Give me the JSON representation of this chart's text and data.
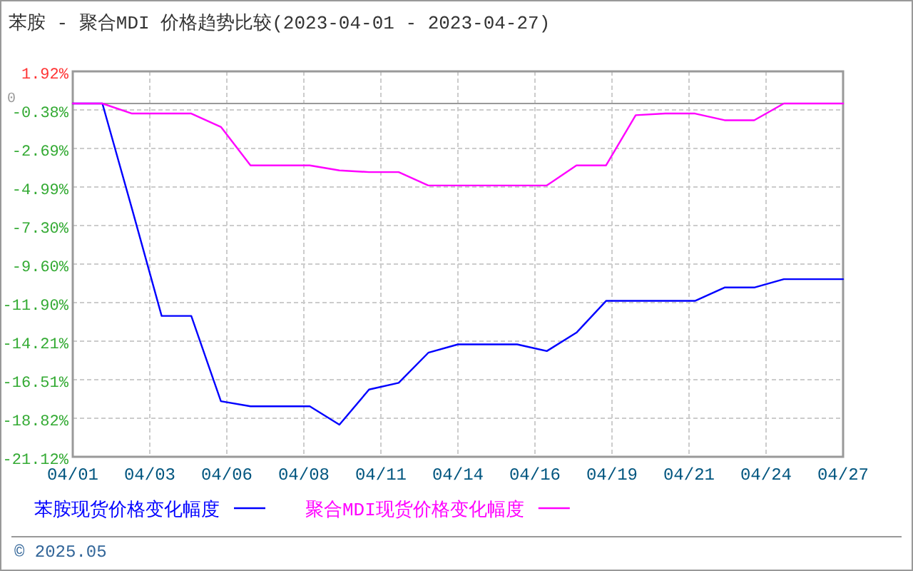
{
  "chart_data": {
    "type": "line",
    "title": "苯胺 - 聚合MDI 价格趋势比较(2023-04-01 - 2023-04-27)",
    "x": [
      "2023-04-01",
      "2023-04-02",
      "2023-04-03",
      "2023-04-04",
      "2023-04-05",
      "2023-04-06",
      "2023-04-07",
      "2023-04-08",
      "2023-04-09",
      "2023-04-10",
      "2023-04-11",
      "2023-04-12",
      "2023-04-13",
      "2023-04-14",
      "2023-04-15",
      "2023-04-16",
      "2023-04-17",
      "2023-04-18",
      "2023-04-19",
      "2023-04-20",
      "2023-04-21",
      "2023-04-22",
      "2023-04-23",
      "2023-04-24",
      "2023-04-25",
      "2023-04-26",
      "2023-04-27"
    ],
    "series": [
      {
        "name": "苯胺现货价格变化幅度",
        "color": "#0000ff",
        "values": [
          0,
          0,
          -6.3,
          -12.7,
          -12.7,
          -17.8,
          -18.1,
          -18.1,
          -18.1,
          -19.2,
          -17.1,
          -16.7,
          -14.9,
          -14.4,
          -14.4,
          -14.4,
          -14.8,
          -13.7,
          -11.8,
          -11.8,
          -11.8,
          -11.8,
          -11,
          -11,
          -10.5,
          -10.5,
          -10.5
        ]
      },
      {
        "name": "聚合MDI现货价格变化幅度",
        "color": "#ff00ff",
        "values": [
          0,
          0,
          -0.6,
          -0.6,
          -0.6,
          -1.4,
          -3.7,
          -3.7,
          -3.7,
          -4,
          -4.1,
          -4.1,
          -4.9,
          -4.9,
          -4.9,
          -4.9,
          -4.9,
          -3.7,
          -3.7,
          -0.7,
          -0.6,
          -0.6,
          -1,
          -1,
          0,
          0,
          0
        ]
      }
    ],
    "xlim": [
      "2023-04-01",
      "2023-04-27"
    ],
    "xticks": [
      {
        "value": "2023-04-01",
        "label": "04/01"
      },
      {
        "value": "2023-04-03T14:24",
        "label": "04/03"
      },
      {
        "value": "2023-04-06T04:48",
        "label": "04/06"
      },
      {
        "value": "2023-04-08T19:12",
        "label": "04/08"
      },
      {
        "value": "2023-04-11T09:36",
        "label": "04/11"
      },
      {
        "value": "2023-04-14",
        "label": "04/14"
      },
      {
        "value": "2023-04-16T14:24",
        "label": "04/16"
      },
      {
        "value": "2023-04-19T04:48",
        "label": "04/19"
      },
      {
        "value": "2023-04-21T19:12",
        "label": "04/21"
      },
      {
        "value": "2023-04-24T09:36",
        "label": "04/24"
      },
      {
        "value": "2023-04-27",
        "label": "04/27"
      }
    ],
    "ylim": [
      -21.12,
      1.92
    ],
    "yticks": [
      {
        "value": 1.92,
        "label": "1.92%"
      },
      {
        "value": -0.38,
        "label": "-0.38%"
      },
      {
        "value": -2.69,
        "label": "-2.69%"
      },
      {
        "value": -4.99,
        "label": "-4.99%"
      },
      {
        "value": -7.3,
        "label": "-7.30%"
      },
      {
        "value": -9.6,
        "label": "-9.60%"
      },
      {
        "value": -11.9,
        "label": "-11.90%"
      },
      {
        "value": -14.21,
        "label": "-14.21%"
      },
      {
        "value": -16.51,
        "label": "-16.51%"
      },
      {
        "value": -18.82,
        "label": "-18.82%"
      },
      {
        "value": -21.12,
        "label": "-21.12%"
      }
    ],
    "ref_lines": [
      {
        "axis": "y",
        "value": 0,
        "label": "0",
        "color": "#999999"
      }
    ],
    "grid": true,
    "legend": "bottom",
    "annotations": [
      "© 2025.05"
    ]
  }
}
